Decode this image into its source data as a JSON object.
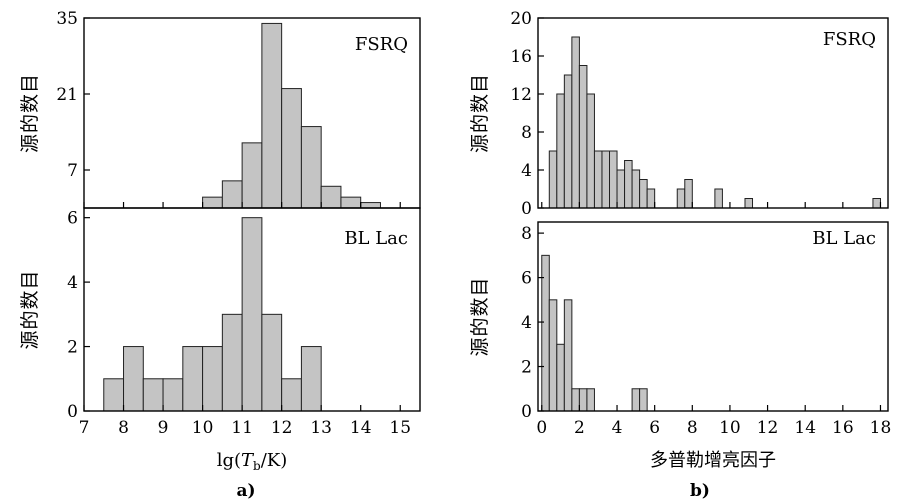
{
  "figure": {
    "sub_a": "a)",
    "sub_b": "b)"
  },
  "chart_data": [
    {
      "type": "bar",
      "panel": "a-top",
      "label": "FSRQ",
      "ylabel": "源的数目",
      "xlim": [
        7,
        15.5
      ],
      "ylim": [
        0,
        35
      ],
      "yticks": [
        7,
        21,
        35
      ],
      "bin_width": 0.5,
      "bins": [
        10,
        10.5,
        11,
        11.5,
        12,
        12.5,
        13,
        13.5,
        14
      ],
      "values": [
        2,
        5,
        12,
        34,
        22,
        15,
        4,
        2,
        1
      ]
    },
    {
      "type": "bar",
      "panel": "a-bottom",
      "label": "BL Lac",
      "ylabel": "源的数目",
      "xlabel": "lg(T_b/K)",
      "xlabel_parts": {
        "pre": "lg(",
        "var": "T",
        "sub": "b",
        "post": "/K)"
      },
      "xlim": [
        7,
        15.5
      ],
      "ylim": [
        0,
        6.3
      ],
      "yticks": [
        0,
        2,
        4,
        6
      ],
      "xticks": [
        7,
        8,
        9,
        10,
        11,
        12,
        13,
        14,
        15
      ],
      "bin_width": 0.5,
      "bins": [
        7.5,
        8,
        8.5,
        9,
        9.5,
        10,
        10.5,
        11,
        11.5,
        12,
        12.5
      ],
      "values": [
        1,
        2,
        1,
        1,
        2,
        2,
        3,
        6,
        3,
        1,
        2
      ]
    },
    {
      "type": "bar",
      "panel": "b-top",
      "label": "FSRQ",
      "ylabel": "源的数目",
      "xlim": [
        -0.2,
        18.4
      ],
      "ylim": [
        0,
        20
      ],
      "yticks": [
        0,
        4,
        8,
        12,
        16,
        20
      ],
      "bin_width": 0.4,
      "bins": [
        0.4,
        0.8,
        1.2,
        1.6,
        2.0,
        2.4,
        2.8,
        3.2,
        3.6,
        4.0,
        4.4,
        4.8,
        5.2,
        5.6,
        7.2,
        7.6,
        9.2,
        10.8,
        17.6
      ],
      "values": [
        6,
        12,
        14,
        18,
        15,
        12,
        6,
        6,
        6,
        4,
        5,
        4,
        3,
        2,
        2,
        3,
        2,
        1,
        1
      ]
    },
    {
      "type": "bar",
      "panel": "b-bottom",
      "label": "BL Lac",
      "ylabel": "源的数目",
      "xlabel": "多普勒增亮因子",
      "xlim": [
        -0.2,
        18.4
      ],
      "ylim": [
        0,
        8.5
      ],
      "yticks": [
        0,
        2,
        4,
        6,
        8
      ],
      "xticks": [
        0,
        2,
        4,
        6,
        8,
        10,
        12,
        14,
        16,
        18
      ],
      "bin_width": 0.4,
      "bins": [
        0,
        0.4,
        0.8,
        1.2,
        1.6,
        2.0,
        2.4,
        4.8,
        5.2
      ],
      "values": [
        7,
        5,
        3,
        5,
        1,
        1,
        1,
        1,
        1
      ]
    }
  ]
}
